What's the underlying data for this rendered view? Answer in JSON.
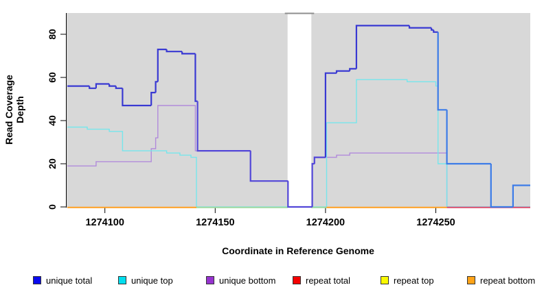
{
  "figure": {
    "kind": "read coverage step plot",
    "panel_color": "#D8D8D8",
    "gap_top_line_color": "#8E8E8E",
    "axis_color": "#000000"
  },
  "chart_data": {
    "type": "line",
    "step_style": true,
    "title": "",
    "xlabel": "Coordinate in Reference Genome",
    "ylabel": "Read Coverage Depth",
    "x_range": [
      1274083,
      1274293
    ],
    "ylim": [
      0,
      89
    ],
    "x_ticks": [
      1274100,
      1274150,
      1274200,
      1274250
    ],
    "y_ticks": [
      0,
      20,
      40,
      60,
      80
    ],
    "grid": false,
    "legend_position": "bottom",
    "gap_region": {
      "x_from": 1274182.8,
      "x_to": 1274193.6,
      "note": "white vertical band, no panel background"
    },
    "series": [
      {
        "name": "unique total",
        "line_color": "#3939D2",
        "overlap_color_with_unique_bottom": "#5246D8",
        "bright_right_color": "#3B7BE8",
        "x_end": 1274293,
        "steps": [
          [
            1274083,
            56
          ],
          [
            1274093,
            55
          ],
          [
            1274096,
            57
          ],
          [
            1274102,
            56
          ],
          [
            1274105,
            55
          ],
          [
            1274108,
            47
          ],
          [
            1274121,
            53
          ],
          [
            1274123,
            58
          ],
          [
            1274124,
            73
          ],
          [
            1274128,
            72
          ],
          [
            1274135,
            71
          ],
          [
            1274141,
            49
          ],
          [
            1274142,
            26
          ],
          [
            1274166,
            12
          ],
          [
            1274183,
            0
          ],
          [
            1274194,
            20
          ],
          [
            1274195,
            23
          ],
          [
            1274200,
            62
          ],
          [
            1274205,
            63
          ],
          [
            1274211,
            64
          ],
          [
            1274214,
            84
          ],
          [
            1274238,
            83
          ],
          [
            1274248,
            82
          ],
          [
            1274249,
            81
          ],
          [
            1274251,
            45
          ],
          [
            1274255,
            20
          ],
          [
            1274275,
            0
          ],
          [
            1274285,
            10
          ]
        ]
      },
      {
        "name": "unique top",
        "line_color": "#76E6EC",
        "x_end": 1274293,
        "steps": [
          [
            1274083,
            37
          ],
          [
            1274092,
            36
          ],
          [
            1274102,
            35
          ],
          [
            1274108,
            26
          ],
          [
            1274128,
            25
          ],
          [
            1274134,
            24
          ],
          [
            1274139,
            23
          ],
          [
            1274141.5,
            0
          ],
          [
            1274200.5,
            39
          ],
          [
            1274214,
            59
          ],
          [
            1274237,
            58
          ],
          [
            1274250,
            56
          ],
          [
            1274251,
            20
          ],
          [
            1274255,
            0
          ]
        ]
      },
      {
        "name": "unique bottom",
        "line_color": "#B18ADB",
        "x_end": 1274293,
        "steps": [
          [
            1274083,
            19
          ],
          [
            1274096,
            21
          ],
          [
            1274121,
            27
          ],
          [
            1274123,
            32
          ],
          [
            1274124,
            47
          ],
          [
            1274141,
            26
          ],
          [
            1274166,
            12
          ],
          [
            1274183,
            0
          ],
          [
            1274194,
            20
          ],
          [
            1274195,
            23
          ],
          [
            1274205,
            24
          ],
          [
            1274211,
            25
          ],
          [
            1274255,
            0
          ]
        ]
      },
      {
        "name": "repeat total",
        "line_color": "#F50000",
        "x_end": 1274293,
        "steps": [
          [
            1274083,
            0
          ]
        ],
        "values_note": "constant 0 across plotted range"
      },
      {
        "name": "repeat top",
        "line_color": "#FAFA00",
        "x_end": 1274293,
        "steps": [
          [
            1274083,
            0
          ]
        ],
        "values_note": "constant 0 across plotted range"
      },
      {
        "name": "repeat bottom",
        "line_color": "#FFA318",
        "x_end": 1274255,
        "steps": [
          [
            1274083,
            0
          ]
        ],
        "values_note": "constant 0 where drawn"
      }
    ],
    "zero_line_segments": [
      {
        "x_from": 1274083,
        "x_to": 1274141.5,
        "color": "#FF9E20",
        "note": "orange (repeat bottom on top)"
      },
      {
        "x_from": 1274141.5,
        "x_to": 1274182.8,
        "color": "#9ED9A0",
        "note": "pale green blend of overlapping zero lines"
      },
      {
        "x_from": 1274193.6,
        "x_to": 1274200.5,
        "color": "#9ED9A0",
        "note": "pale green blend of overlapping zero lines"
      },
      {
        "x_from": 1274200.5,
        "x_to": 1274255,
        "color": "#FF9E20",
        "note": "orange (repeat bottom on top)"
      },
      {
        "x_from": 1274255,
        "x_to": 1274293,
        "color": "#DC4A6A",
        "note": "crimson blend of overlapping zero lines"
      }
    ]
  },
  "legend": {
    "items": [
      {
        "label": "unique total",
        "swatch_color": "#0A0AEE"
      },
      {
        "label": "unique top",
        "swatch_color": "#00DEEE"
      },
      {
        "label": "unique bottom",
        "swatch_color": "#9633CF"
      },
      {
        "label": "repeat total",
        "swatch_color": "#F50000"
      },
      {
        "label": "repeat top",
        "swatch_color": "#FAFA00"
      },
      {
        "label": "repeat bottom",
        "swatch_color": "#FFA318"
      }
    ]
  }
}
